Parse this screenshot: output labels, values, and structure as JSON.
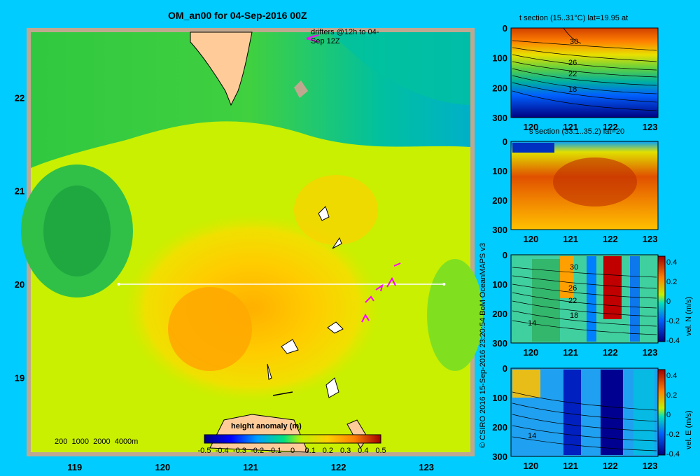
{
  "chart_data": [
    {
      "type": "heatmap",
      "title": "OM_an00 for 04-Sep-2016 00Z",
      "x_ticks": [
        "119",
        "120",
        "121",
        "122",
        "123"
      ],
      "y_ticks": [
        "22",
        "21",
        "20",
        "19"
      ],
      "xlim": [
        118.5,
        123.5
      ],
      "ylim": [
        18.2,
        22.7
      ],
      "section_line": {
        "lat": 20,
        "lon_start": 119.5,
        "lon_end": 123.2
      },
      "drifter_label": "drifters @12h to 04-Sep 12Z",
      "depth_legend": [
        "200",
        "1000",
        "2000",
        "4000m"
      ],
      "colorbar": {
        "title": "height anomaly (m)",
        "ticks": [
          "-0.5",
          "-0.4",
          "-0.3",
          "-0.2",
          "-0.1",
          "0",
          "0.1",
          "0.2",
          "0.3",
          "0.4",
          "0.5"
        ],
        "range": [
          -0.5,
          0.5
        ]
      },
      "colors": [
        "#000080",
        "#0000ff",
        "#0080ff",
        "#00c0ff",
        "#00e0a0",
        "#00c060",
        "#40d040",
        "#c0f000",
        "#ffe000",
        "#ffb000",
        "#ff8000",
        "#c00000"
      ]
    },
    {
      "type": "heatmap",
      "title": "t section (15..31°C) lat=19.95 at",
      "x_ticks": [
        "120",
        "121",
        "122",
        "123"
      ],
      "y_ticks": [
        "0",
        "100",
        "200",
        "300"
      ],
      "contour_labels": [
        "30",
        "26",
        "22",
        "18"
      ]
    },
    {
      "type": "heatmap",
      "title": "s section (33.1..35.2) lat=20",
      "x_ticks": [
        "120",
        "121",
        "122",
        "123"
      ],
      "y_ticks": [
        "0",
        "100",
        "200",
        "300"
      ]
    },
    {
      "type": "heatmap",
      "title": "",
      "x_ticks": [
        "120",
        "121",
        "122",
        "123"
      ],
      "y_ticks": [
        "0",
        "100",
        "200",
        "300"
      ],
      "contour_labels": [
        "30",
        "26",
        "22",
        "18",
        "14"
      ],
      "colorbar": {
        "label": "vel. N (m/s)",
        "ticks": [
          "0.4",
          "0.2",
          "0",
          "-0.2",
          "-0.4"
        ]
      }
    },
    {
      "type": "heatmap",
      "title": "",
      "x_ticks": [
        "120",
        "121",
        "122",
        "123"
      ],
      "y_ticks": [
        "0",
        "100",
        "200",
        "300"
      ],
      "contour_labels": [
        "14"
      ],
      "colorbar": {
        "label": "vel. E (m/s)",
        "ticks": [
          "0.4",
          "0.2",
          "0",
          "-0.2",
          "-0.4"
        ]
      }
    }
  ],
  "credit": "© CSIRO 2016   15-Sep-2016 23:20:54 BoM OceanMAPS v3"
}
